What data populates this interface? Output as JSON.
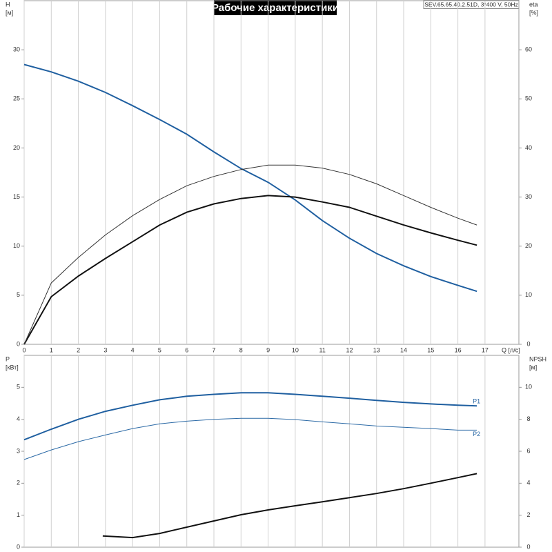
{
  "chart_data": [
    {
      "type": "line",
      "title": "Рабочие характеристики",
      "subtitle": "SEV.65.65.40.2.51D, 3*400 V, 50Hz",
      "ylabel": "H",
      "yunit": "[м]",
      "y2label": "eta",
      "y2unit": "[%]",
      "xlabel": "Q [л/с]",
      "xlim": [
        0,
        18.25
      ],
      "xticks": [
        0,
        1,
        2,
        3,
        4,
        5,
        6,
        7,
        8,
        9,
        10,
        11,
        12,
        13,
        14,
        15,
        16,
        17
      ],
      "ylim": [
        0,
        35
      ],
      "yticks": [
        0,
        5,
        10,
        15,
        20,
        25,
        30
      ],
      "y2lim": [
        0,
        70
      ],
      "y2ticks": [
        0,
        10,
        20,
        30,
        40,
        50,
        60
      ],
      "grid": "x",
      "x": [
        0,
        1,
        2,
        3,
        4,
        5,
        6,
        7,
        8,
        9,
        10,
        11,
        12,
        13,
        14,
        15,
        16,
        16.7
      ],
      "series": [
        {
          "color": "#1f5fa0",
          "width": 2,
          "values": [
            28.5,
            27.75,
            26.8,
            25.65,
            24.3,
            22.9,
            21.4,
            19.6,
            17.9,
            16.5,
            14.7,
            12.6,
            10.8,
            9.25,
            8.0,
            6.9,
            6.0,
            5.4
          ]
        },
        {
          "color": "#111111",
          "width": 2,
          "axis": "y2",
          "values": [
            0,
            9.7,
            13.9,
            17.5,
            20.9,
            24.3,
            26.9,
            28.6,
            29.7,
            30.3,
            30.0,
            29.0,
            27.9,
            26.1,
            24.3,
            22.7,
            21.2,
            20.2
          ]
        },
        {
          "color": "#333333",
          "width": 1,
          "axis": "y2",
          "values": [
            0,
            12.5,
            17.7,
            22.3,
            26.2,
            29.5,
            32.3,
            34.2,
            35.6,
            36.5,
            36.5,
            35.9,
            34.6,
            32.7,
            30.3,
            27.9,
            25.7,
            24.3
          ]
        }
      ]
    },
    {
      "type": "line",
      "ylabel": "P",
      "yunit": "[кВт]",
      "y2label": "NPSH",
      "y2unit": "[м]",
      "xlim": [
        0,
        18.25
      ],
      "xticks": [
        0,
        1,
        2,
        3,
        4,
        5,
        6,
        7,
        8,
        9,
        10,
        11,
        12,
        13,
        14,
        15,
        16,
        17
      ],
      "ylim": [
        0,
        6
      ],
      "yticks": [
        0,
        1,
        2,
        3,
        4,
        5
      ],
      "y2lim": [
        0,
        12
      ],
      "y2ticks": [
        0,
        2,
        4,
        6,
        8,
        10
      ],
      "grid": "x",
      "x": [
        0,
        1,
        2,
        3,
        4,
        5,
        6,
        7,
        8,
        9,
        10,
        11,
        12,
        13,
        14,
        15,
        16,
        16.7
      ],
      "series": [
        {
          "name": "P1",
          "color": "#1f5fa0",
          "width": 2,
          "values": [
            3.36,
            3.69,
            4.0,
            4.25,
            4.44,
            4.61,
            4.72,
            4.78,
            4.83,
            4.83,
            4.78,
            4.72,
            4.66,
            4.59,
            4.53,
            4.48,
            4.44,
            4.42
          ]
        },
        {
          "name": "P2",
          "color": "#2c6aa6",
          "width": 1,
          "values": [
            2.74,
            3.04,
            3.3,
            3.51,
            3.71,
            3.86,
            3.94,
            4.0,
            4.03,
            4.03,
            3.99,
            3.92,
            3.86,
            3.79,
            3.75,
            3.71,
            3.66,
            3.66
          ]
        },
        {
          "color": "#111111",
          "width": 2,
          "axis": "y2",
          "x": [
            2.9,
            4,
            5,
            6,
            7,
            8,
            9,
            10,
            11,
            12,
            13,
            14,
            15,
            16,
            16.7
          ],
          "values": [
            0.7,
            0.6,
            0.86,
            1.25,
            1.64,
            2.03,
            2.33,
            2.59,
            2.84,
            3.1,
            3.36,
            3.66,
            4.0,
            4.35,
            4.6
          ]
        }
      ]
    }
  ]
}
